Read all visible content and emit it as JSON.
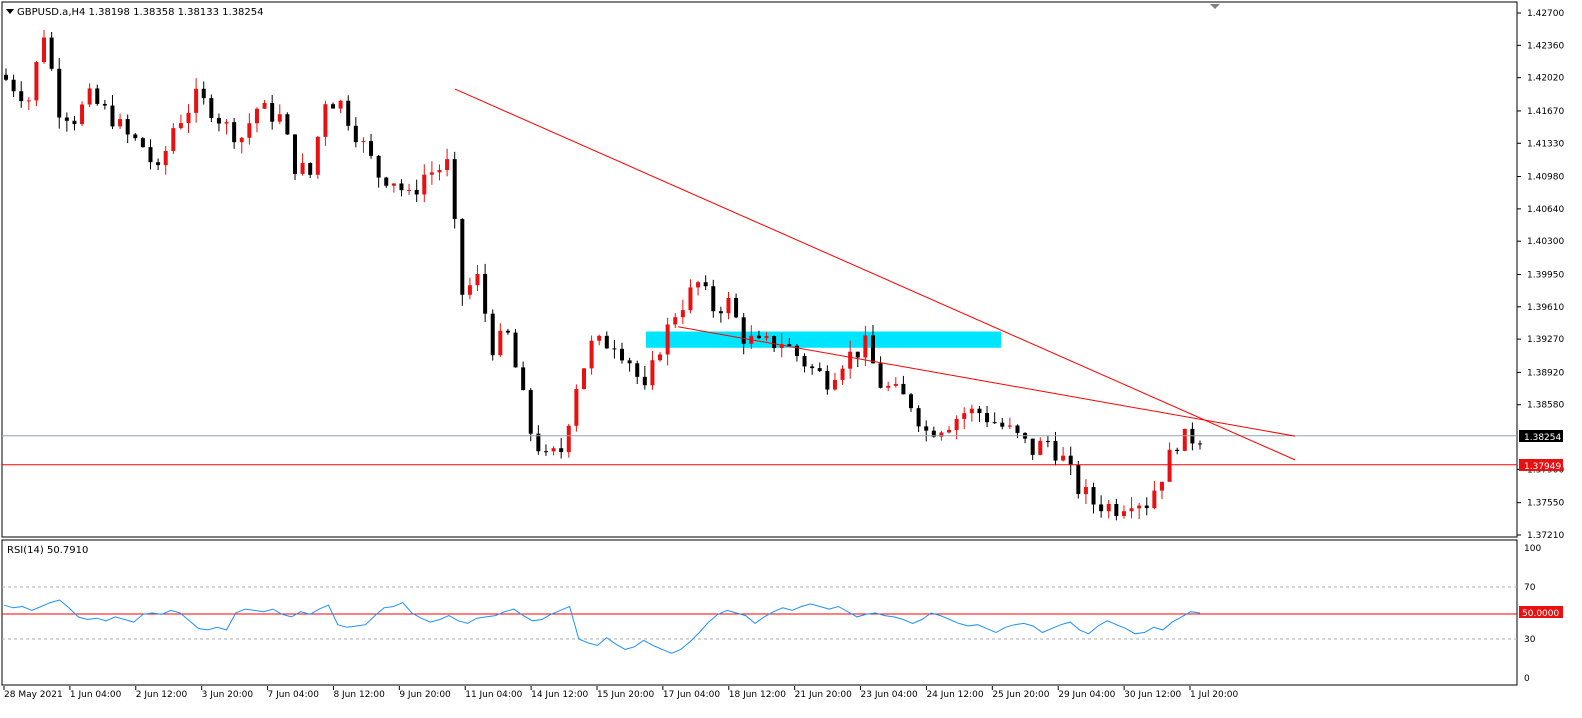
{
  "price_panel": {
    "symbol_line": "GBPUSD.a,H4  1.38198 1.38358 1.38133 1.38254",
    "ohlc": {
      "open": 1.38198,
      "high": 1.38358,
      "low": 1.38133,
      "close": 1.38254
    },
    "current_price": "1.38254",
    "hline_price": "1.37949"
  },
  "rsi_panel": {
    "title": "RSI(14) 50.7910",
    "level_label": "50.0000",
    "scale_labels": [
      "100",
      "70",
      "50",
      "30",
      "0"
    ]
  },
  "time_labels": [
    "28 May 2021",
    "1 Jun 04:00",
    "2 Jun 12:00",
    "3 Jun 20:00",
    "7 Jun 04:00",
    "8 Jun 12:00",
    "9 Jun 20:00",
    "11 Jun 04:00",
    "14 Jun 12:00",
    "15 Jun 20:00",
    "17 Jun 04:00",
    "18 Jun 12:00",
    "21 Jun 20:00",
    "23 Jun 04:00",
    "24 Jun 12:00",
    "25 Jun 20:00",
    "29 Jun 04:00",
    "30 Jun 12:00",
    "1 Jul 20:00"
  ],
  "colors": {
    "bull": "#e81010",
    "bear": "#000000",
    "trendline": "#ff0000",
    "zone": "#00e5ff",
    "rsi": "#1e90ff",
    "current_line": "#90a4b0"
  },
  "chart_data": [
    {
      "type": "candlestick",
      "symbol": "GBPUSD.a",
      "timeframe": "H4",
      "y_ticks": [
        1.427,
        1.4236,
        1.4202,
        1.4167,
        1.4133,
        1.4098,
        1.4064,
        1.403,
        1.3995,
        1.3961,
        1.3927,
        1.3892,
        1.3858,
        1.379,
        1.3755,
        1.3721
      ],
      "y_range": [
        1.3721,
        1.427
      ],
      "x": [
        "28 May 2021",
        "1 Jun 04:00",
        "2 Jun 12:00",
        "3 Jun 20:00",
        "7 Jun 04:00",
        "8 Jun 12:00",
        "9 Jun 20:00",
        "11 Jun 04:00",
        "14 Jun 12:00",
        "15 Jun 20:00",
        "17 Jun 04:00",
        "18 Jun 12:00",
        "21 Jun 20:00",
        "23 Jun 04:00",
        "24 Jun 12:00",
        "25 Jun 20:00",
        "29 Jun 04:00",
        "30 Jun 12:00",
        "1 Jul 20:00"
      ],
      "close_path": [
        1.42,
        1.418,
        1.425,
        1.417,
        1.416,
        1.418,
        1.416,
        1.414,
        1.413,
        1.41,
        1.415,
        1.418,
        1.417,
        1.415,
        1.414,
        1.417,
        1.416,
        1.411,
        1.41,
        1.418,
        1.4175,
        1.413,
        1.41,
        1.4095,
        1.4075,
        1.41,
        1.411,
        1.3975,
        1.399,
        1.392,
        1.393,
        1.383,
        1.38,
        1.381,
        1.388,
        1.392,
        1.3925,
        1.3905,
        1.387,
        1.392,
        1.3955,
        1.3985,
        1.396,
        1.3965,
        1.393,
        1.392,
        1.3925,
        1.391,
        1.3895,
        1.3885,
        1.3905,
        1.392,
        1.388,
        1.387,
        1.386,
        1.383,
        1.384,
        1.385,
        1.385,
        1.384,
        1.383,
        1.381,
        1.382,
        1.38,
        1.377,
        1.3755,
        1.375,
        1.376,
        1.3755,
        1.3785,
        1.382,
        1.3825
      ],
      "horizontal_lines": [
        1.38254,
        1.37949
      ],
      "zone": {
        "from": 1.392,
        "to": 1.3935
      },
      "trendlines": [
        {
          "from": [
            1.419
          ],
          "to": [
            1.38
          ]
        },
        {
          "from": [
            1.394
          ],
          "to": [
            1.3825
          ]
        }
      ]
    },
    {
      "type": "line",
      "name": "RSI(14)",
      "last_value": 50.791,
      "y_range": [
        0,
        100
      ],
      "levels": [
        70,
        50,
        30
      ],
      "values": [
        56,
        54,
        55,
        52,
        55,
        58,
        60,
        54,
        47,
        45,
        46,
        44,
        47,
        45,
        43,
        49,
        50,
        49,
        52,
        50,
        44,
        38,
        37,
        39,
        37,
        50,
        53,
        52,
        51,
        53,
        49,
        47,
        51,
        49,
        53,
        56,
        41,
        39,
        40,
        41,
        48,
        54,
        55,
        58,
        50,
        46,
        43,
        45,
        48,
        44,
        42,
        46,
        47,
        48,
        51,
        53,
        48,
        44,
        45,
        49,
        52,
        55,
        30,
        27,
        25,
        31,
        26,
        22,
        24,
        29,
        25,
        22,
        19,
        22,
        28,
        35,
        43,
        49,
        52,
        50,
        48,
        42,
        47,
        51,
        54,
        52,
        55,
        57,
        55,
        53,
        55,
        51,
        47,
        49,
        50,
        48,
        47,
        45,
        42,
        45,
        50,
        48,
        45,
        42,
        40,
        41,
        38,
        35,
        39,
        41,
        42,
        40,
        35,
        38,
        41,
        43,
        37,
        34,
        40,
        44,
        41,
        38,
        34,
        35,
        39,
        37,
        43,
        47,
        51,
        50
      ]
    }
  ]
}
